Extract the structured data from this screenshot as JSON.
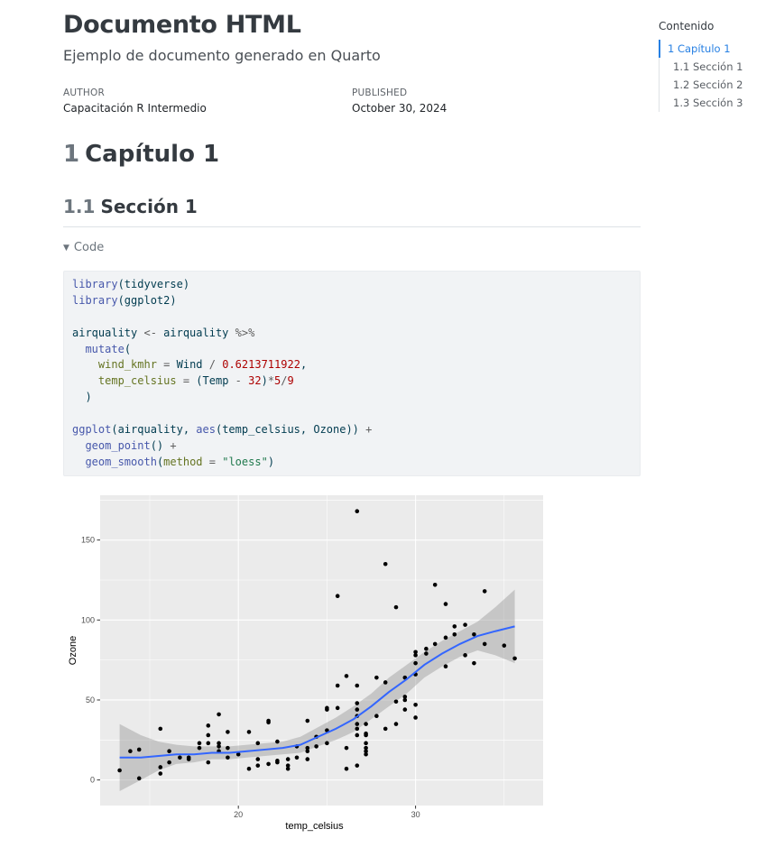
{
  "doc": {
    "title": "Documento HTML",
    "subtitle": "Ejemplo de documento generado en Quarto",
    "author_label": "AUTHOR",
    "author": "Capacitación R Intermedio",
    "published_label": "PUBLISHED",
    "published": "October 30, 2024"
  },
  "chapter": {
    "number": "1",
    "title": "Capítulo 1"
  },
  "section": {
    "number": "1.1",
    "title": "Sección 1"
  },
  "code": {
    "toggle_label": "Code",
    "lines": [
      [
        [
          "fn",
          "library"
        ],
        [
          "p",
          "(tidyverse)"
        ]
      ],
      [
        [
          "fn",
          "library"
        ],
        [
          "p",
          "(ggplot2)"
        ]
      ],
      [],
      [
        [
          "p",
          "airquality "
        ],
        [
          "op",
          "<-"
        ],
        [
          "p",
          " airquality "
        ],
        [
          "op",
          "%>%"
        ]
      ],
      [
        [
          "p",
          "  "
        ],
        [
          "fn",
          "mutate"
        ],
        [
          "p",
          "("
        ]
      ],
      [
        [
          "p",
          "    "
        ],
        [
          "arg",
          "wind_kmhr"
        ],
        [
          "p",
          " "
        ],
        [
          "op",
          "="
        ],
        [
          "p",
          " Wind "
        ],
        [
          "op",
          "/"
        ],
        [
          "p",
          " "
        ],
        [
          "num",
          "0.6213711922"
        ],
        [
          "p",
          ","
        ]
      ],
      [
        [
          "p",
          "    "
        ],
        [
          "arg",
          "temp_celsius"
        ],
        [
          "p",
          " "
        ],
        [
          "op",
          "="
        ],
        [
          "p",
          " (Temp "
        ],
        [
          "op",
          "-"
        ],
        [
          "p",
          " "
        ],
        [
          "num",
          "32"
        ],
        [
          "p",
          ")"
        ],
        [
          "op",
          "*"
        ],
        [
          "num",
          "5"
        ],
        [
          "op",
          "/"
        ],
        [
          "num",
          "9"
        ]
      ],
      [
        [
          "p",
          "  )"
        ]
      ],
      [],
      [
        [
          "fn",
          "ggplot"
        ],
        [
          "p",
          "(airquality, "
        ],
        [
          "fn",
          "aes"
        ],
        [
          "p",
          "(temp_celsius, Ozone)) "
        ],
        [
          "op",
          "+"
        ]
      ],
      [
        [
          "p",
          "  "
        ],
        [
          "fn",
          "geom_point"
        ],
        [
          "p",
          "() "
        ],
        [
          "op",
          "+"
        ]
      ],
      [
        [
          "p",
          "  "
        ],
        [
          "fn",
          "geom_smooth"
        ],
        [
          "p",
          "("
        ],
        [
          "arg",
          "method"
        ],
        [
          "p",
          " "
        ],
        [
          "op",
          "="
        ],
        [
          "p",
          " "
        ],
        [
          "str",
          "\"loess\""
        ],
        [
          "p",
          ")"
        ]
      ]
    ]
  },
  "toc": {
    "title": "Contenido",
    "items": [
      {
        "label": "1 Capítulo 1",
        "level": 1,
        "active": true
      },
      {
        "label": "1.1 Sección 1",
        "level": 2,
        "active": false
      },
      {
        "label": "1.2 Sección 2",
        "level": 2,
        "active": false
      },
      {
        "label": "1.3 Sección 3",
        "level": 2,
        "active": false
      }
    ]
  },
  "chart_data": {
    "type": "scatter",
    "xlabel": "temp_celsius",
    "ylabel": "Ozone",
    "xlim": [
      12.2,
      37.2
    ],
    "ylim": [
      -16,
      178
    ],
    "x_ticks": [
      20,
      30
    ],
    "y_ticks": [
      0,
      50,
      100,
      150
    ],
    "grid": true,
    "colors": {
      "panel": "#ebebeb",
      "grid": "#ffffff",
      "point": "#000000",
      "smooth": "#3366ff",
      "band": "#999999"
    },
    "points": [
      [
        13.3,
        6
      ],
      [
        13.9,
        18
      ],
      [
        14.4,
        19
      ],
      [
        14.4,
        1
      ],
      [
        15.6,
        32
      ],
      [
        15.6,
        8
      ],
      [
        15.6,
        4
      ],
      [
        16.1,
        18
      ],
      [
        16.1,
        11
      ],
      [
        16.7,
        14
      ],
      [
        17.2,
        14
      ],
      [
        17.2,
        13
      ],
      [
        17.8,
        20
      ],
      [
        17.8,
        23
      ],
      [
        18.3,
        23
      ],
      [
        18.3,
        11
      ],
      [
        18.3,
        34
      ],
      [
        18.3,
        28
      ],
      [
        18.9,
        41
      ],
      [
        18.9,
        18
      ],
      [
        18.9,
        21
      ],
      [
        18.9,
        23
      ],
      [
        19.4,
        30
      ],
      [
        19.4,
        20
      ],
      [
        19.4,
        14
      ],
      [
        20.0,
        16
      ],
      [
        20.6,
        30
      ],
      [
        20.6,
        7
      ],
      [
        21.1,
        23
      ],
      [
        21.1,
        13
      ],
      [
        21.1,
        9
      ],
      [
        21.7,
        36
      ],
      [
        21.7,
        37
      ],
      [
        21.7,
        10
      ],
      [
        22.2,
        24
      ],
      [
        22.2,
        12
      ],
      [
        22.2,
        11
      ],
      [
        22.8,
        13
      ],
      [
        22.8,
        9
      ],
      [
        22.8,
        7
      ],
      [
        23.3,
        21
      ],
      [
        23.3,
        14
      ],
      [
        23.9,
        37
      ],
      [
        23.9,
        18
      ],
      [
        23.9,
        13
      ],
      [
        23.9,
        20
      ],
      [
        24.4,
        27
      ],
      [
        24.4,
        21
      ],
      [
        25.0,
        31
      ],
      [
        25.0,
        23
      ],
      [
        25.0,
        45
      ],
      [
        25.0,
        44
      ],
      [
        25.6,
        115
      ],
      [
        25.6,
        59
      ],
      [
        25.6,
        45
      ],
      [
        26.1,
        65
      ],
      [
        26.1,
        20
      ],
      [
        26.1,
        7
      ],
      [
        26.7,
        48
      ],
      [
        26.7,
        44
      ],
      [
        26.7,
        59
      ],
      [
        26.7,
        168
      ],
      [
        26.7,
        40
      ],
      [
        26.7,
        35
      ],
      [
        26.7,
        28
      ],
      [
        26.7,
        32
      ],
      [
        26.7,
        9
      ],
      [
        27.2,
        35
      ],
      [
        27.2,
        29
      ],
      [
        27.2,
        20
      ],
      [
        27.2,
        16
      ],
      [
        27.2,
        23
      ],
      [
        27.2,
        28
      ],
      [
        27.2,
        18
      ],
      [
        27.8,
        64
      ],
      [
        27.8,
        40
      ],
      [
        28.3,
        135
      ],
      [
        28.3,
        32
      ],
      [
        28.3,
        61
      ],
      [
        28.9,
        108
      ],
      [
        28.9,
        35
      ],
      [
        28.9,
        49
      ],
      [
        29.4,
        64
      ],
      [
        29.4,
        52
      ],
      [
        29.4,
        44
      ],
      [
        29.4,
        50
      ],
      [
        30.0,
        80
      ],
      [
        30.0,
        78
      ],
      [
        30.0,
        73
      ],
      [
        30.0,
        66
      ],
      [
        30.0,
        47
      ],
      [
        30.0,
        39
      ],
      [
        30.6,
        82
      ],
      [
        30.6,
        79
      ],
      [
        31.1,
        122
      ],
      [
        31.1,
        85
      ],
      [
        31.7,
        110
      ],
      [
        31.7,
        89
      ],
      [
        31.7,
        71
      ],
      [
        32.2,
        96
      ],
      [
        32.2,
        91
      ],
      [
        32.8,
        97
      ],
      [
        32.8,
        78
      ],
      [
        33.3,
        91
      ],
      [
        33.3,
        73
      ],
      [
        33.9,
        118
      ],
      [
        33.9,
        85
      ],
      [
        35.0,
        84
      ],
      [
        35.6,
        76
      ]
    ],
    "smooth": [
      [
        13.3,
        14
      ],
      [
        14.5,
        14
      ],
      [
        15.5,
        15
      ],
      [
        16.5,
        16
      ],
      [
        17.5,
        16
      ],
      [
        18.5,
        17
      ],
      [
        19.5,
        17
      ],
      [
        20.5,
        18
      ],
      [
        21.5,
        19
      ],
      [
        22.5,
        20
      ],
      [
        23.5,
        22
      ],
      [
        24.5,
        27
      ],
      [
        25.5,
        32
      ],
      [
        26.5,
        38
      ],
      [
        27.5,
        46
      ],
      [
        28.5,
        55
      ],
      [
        29.5,
        63
      ],
      [
        30.5,
        72
      ],
      [
        31.5,
        79
      ],
      [
        32.5,
        85
      ],
      [
        33.5,
        90
      ],
      [
        34.5,
        93
      ],
      [
        35.6,
        96
      ]
    ],
    "band_upper": [
      [
        13.3,
        35
      ],
      [
        14.5,
        28
      ],
      [
        15.5,
        24
      ],
      [
        16.5,
        22
      ],
      [
        17.5,
        21
      ],
      [
        18.5,
        21
      ],
      [
        19.5,
        21
      ],
      [
        20.5,
        22
      ],
      [
        21.5,
        23
      ],
      [
        22.5,
        24
      ],
      [
        23.5,
        27
      ],
      [
        24.5,
        33
      ],
      [
        25.5,
        39
      ],
      [
        26.5,
        46
      ],
      [
        27.5,
        54
      ],
      [
        28.5,
        64
      ],
      [
        29.5,
        72
      ],
      [
        30.5,
        80
      ],
      [
        31.5,
        87
      ],
      [
        32.5,
        93
      ],
      [
        33.5,
        99
      ],
      [
        34.5,
        108
      ],
      [
        35.6,
        119
      ]
    ],
    "band_lower": [
      [
        13.3,
        -7
      ],
      [
        14.5,
        0
      ],
      [
        15.5,
        6
      ],
      [
        16.5,
        10
      ],
      [
        17.5,
        11
      ],
      [
        18.5,
        13
      ],
      [
        19.5,
        13
      ],
      [
        20.5,
        14
      ],
      [
        21.5,
        15
      ],
      [
        22.5,
        16
      ],
      [
        23.5,
        17
      ],
      [
        24.5,
        21
      ],
      [
        25.5,
        25
      ],
      [
        26.5,
        30
      ],
      [
        27.5,
        38
      ],
      [
        28.5,
        46
      ],
      [
        29.5,
        54
      ],
      [
        30.5,
        64
      ],
      [
        31.5,
        71
      ],
      [
        32.5,
        77
      ],
      [
        33.5,
        81
      ],
      [
        34.5,
        78
      ],
      [
        35.6,
        73
      ]
    ]
  }
}
